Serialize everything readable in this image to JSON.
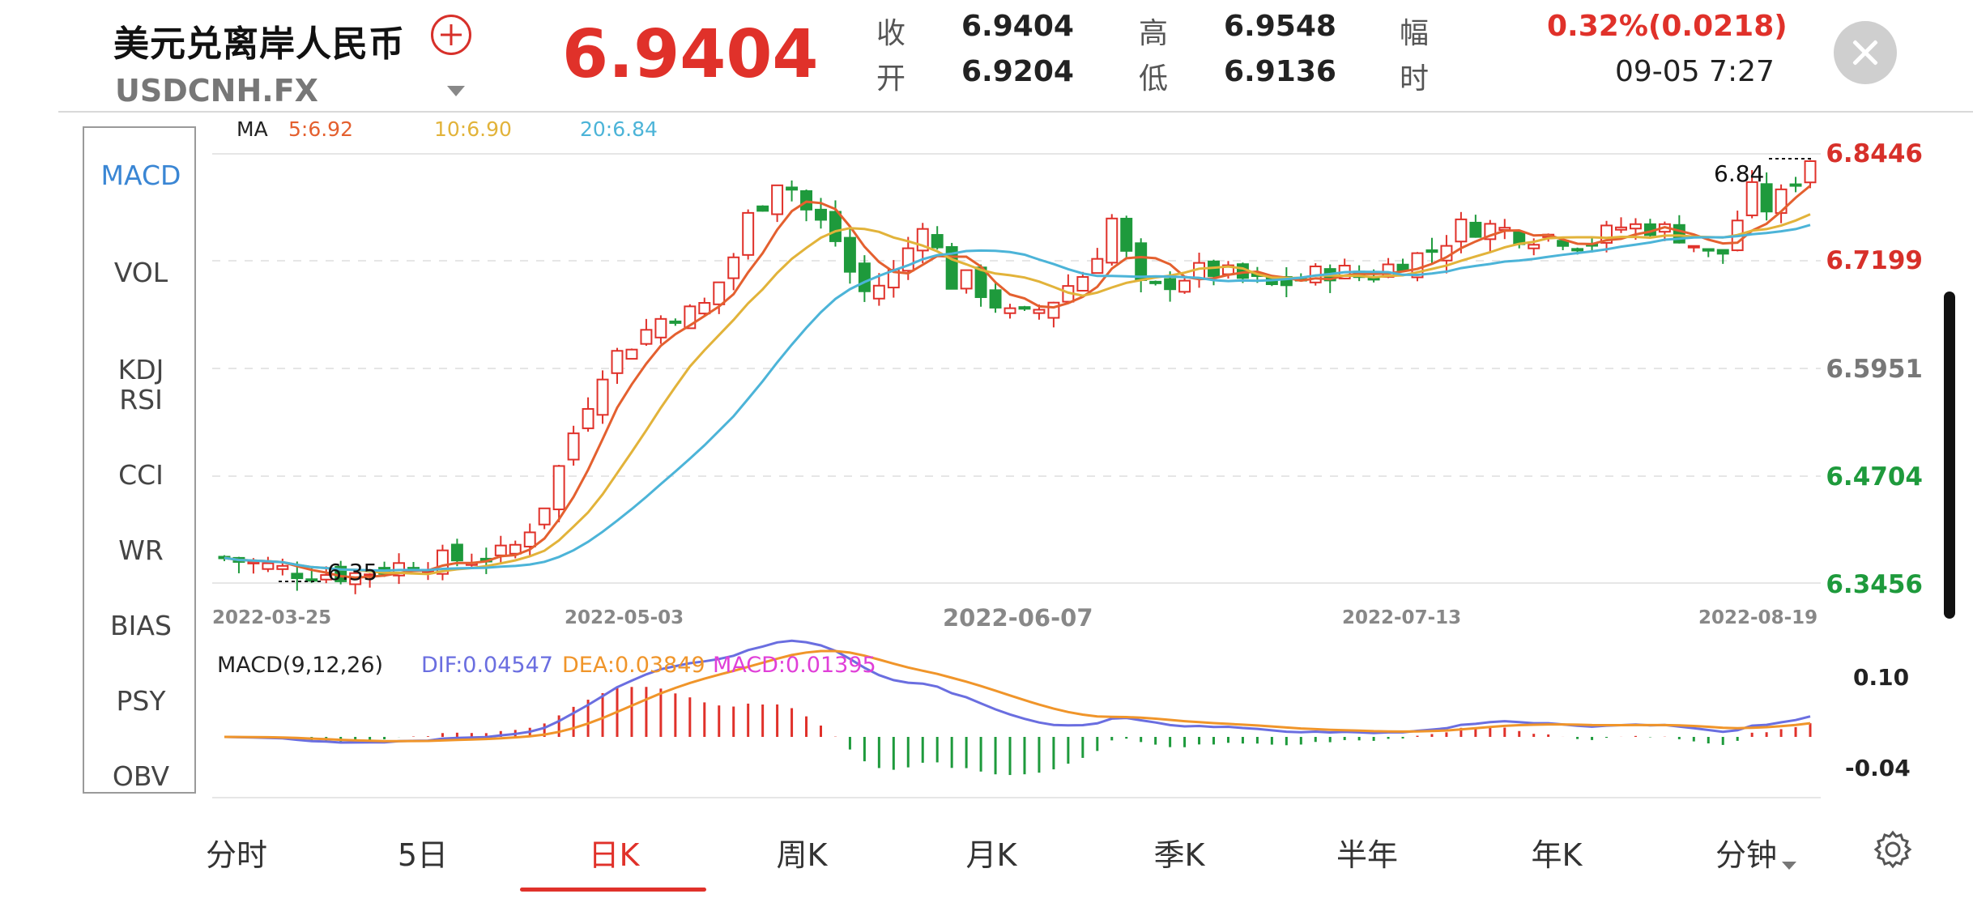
{
  "header": {
    "title": "美元兑离岸人民币",
    "code": "USDCNH.FX",
    "price": "6.9404",
    "quote": [
      {
        "label": "收",
        "value": "6.9404"
      },
      {
        "label": "高",
        "value": "6.9548"
      },
      {
        "label": "幅",
        "value": "0.32%(0.0218)"
      },
      {
        "label": "开",
        "value": "6.9204"
      },
      {
        "label": "低",
        "value": "6.9136"
      },
      {
        "label": "时",
        "value": "09-05 7:27"
      }
    ]
  },
  "indicators": [
    "MACD",
    "VOL",
    "KDJ\nRSI",
    "CCI",
    "WR",
    "BIAS",
    "PSY",
    "OBV"
  ],
  "ma_legend": {
    "label": "MA",
    "ma5": "5:6.92",
    "ma10": "10:6.90",
    "ma20": "20:6.84"
  },
  "price_axis": [
    "6.8446",
    "6.7199",
    "6.5951",
    "6.4704",
    "6.3456"
  ],
  "date_axis": [
    "2022-03-25",
    "2022-05-03",
    "2022-06-07",
    "2022-07-13",
    "2022-08-19"
  ],
  "annotations": {
    "high": "6.84",
    "low": "6.35"
  },
  "macd_legend": {
    "name": "MACD(9,12,26)",
    "dif": "DIF:0.04547",
    "dea": "DEA:0.03849",
    "macd": "MACD:0.01395"
  },
  "macd_axis": [
    "0.10",
    "-0.04"
  ],
  "tabs": [
    "分时",
    "5日",
    "日K",
    "周K",
    "月K",
    "季K",
    "半年",
    "年K",
    "分钟"
  ],
  "active_tab": "日K",
  "colors": {
    "up": "#e0312a",
    "down": "#1e9a3c",
    "ma5": "#e4602f",
    "ma10": "#e2b33a",
    "ma20": "#4cb4d8",
    "dif": "#6a6ee0",
    "dea": "#f0952a",
    "macd": "#e03fd8",
    "active_indicator": "#3a86d4"
  }
}
